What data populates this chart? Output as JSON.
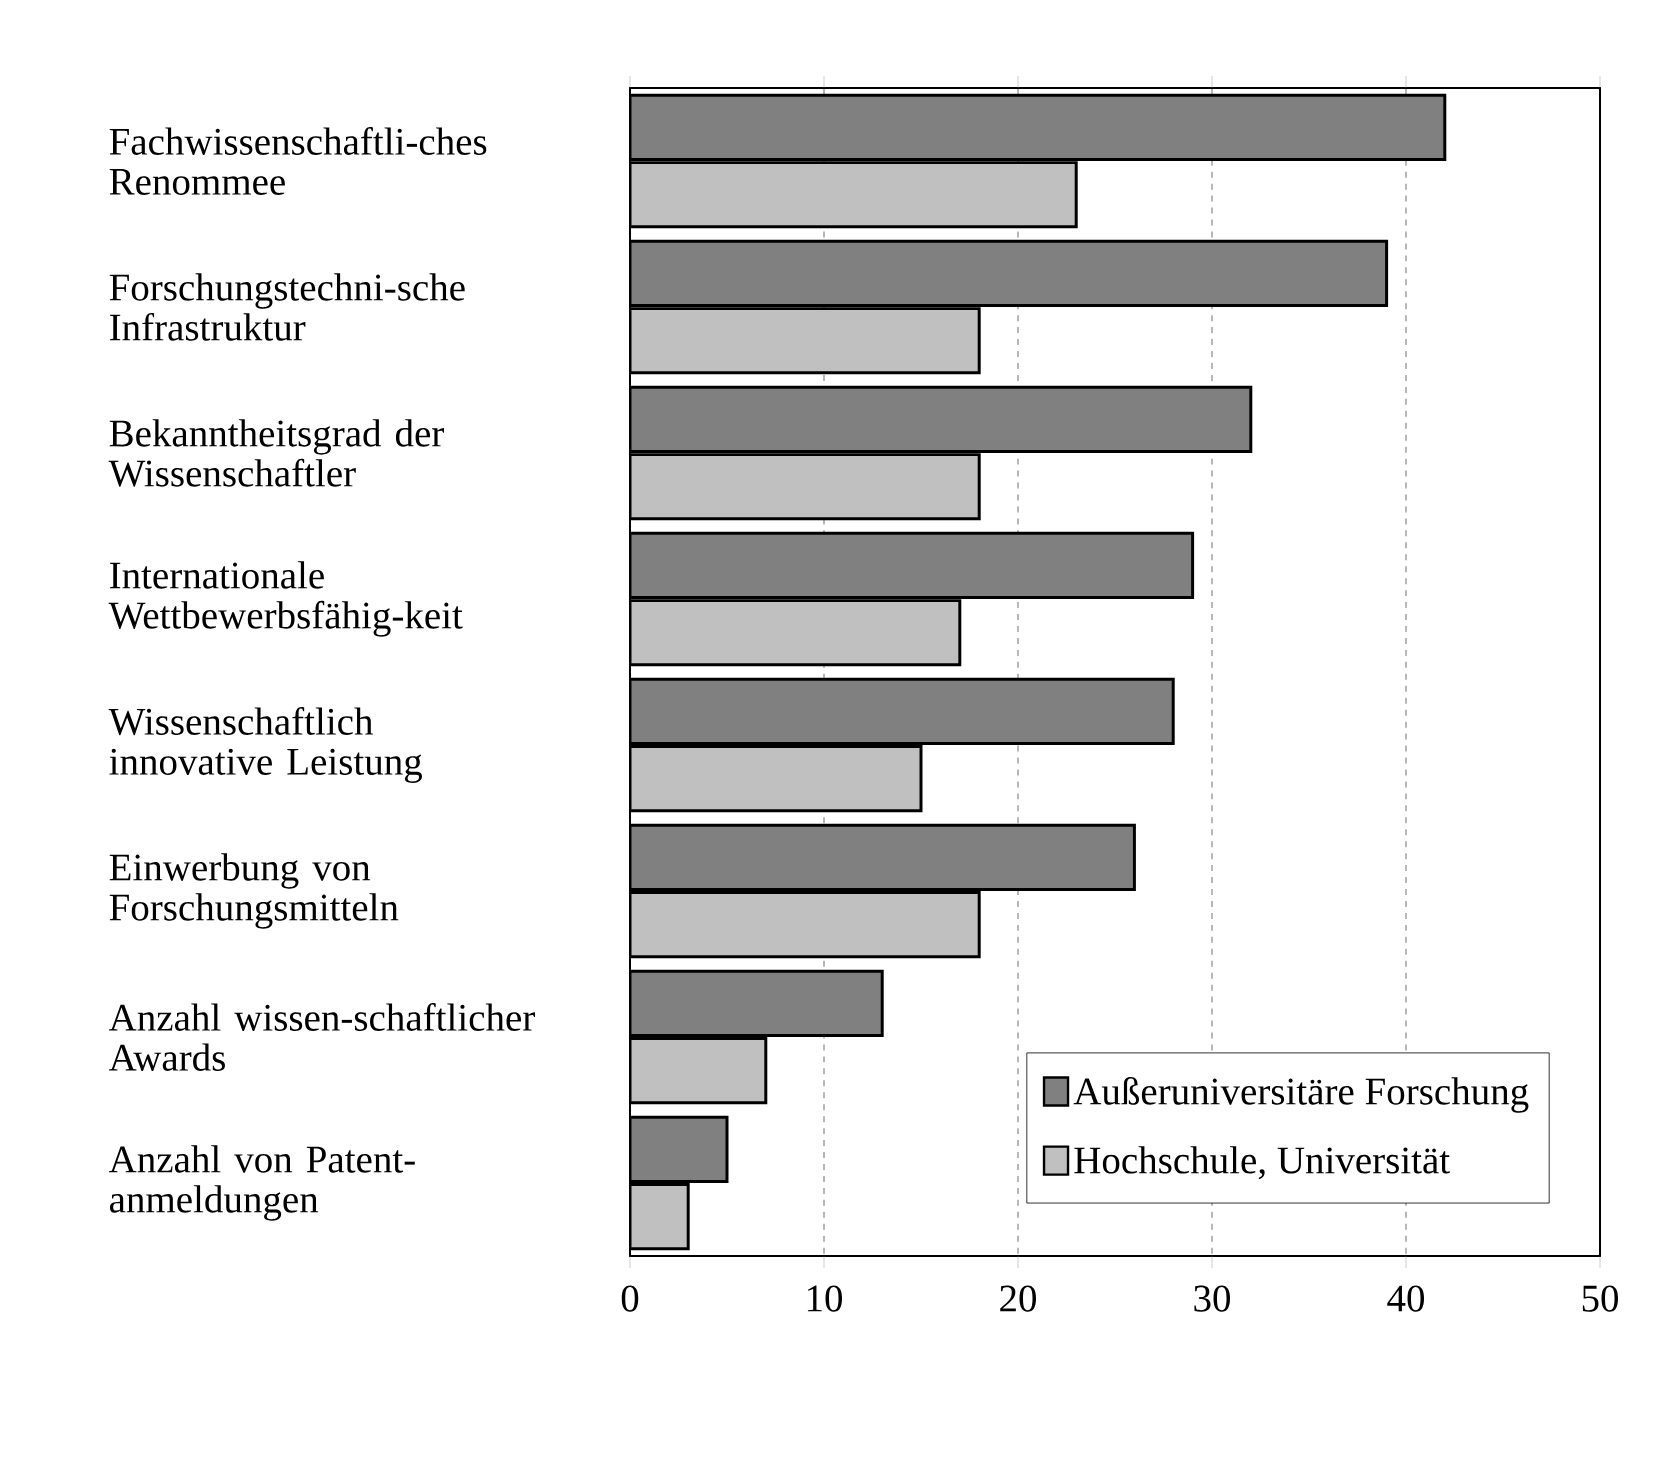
{
  "chart_data": {
    "type": "bar",
    "orientation": "horizontal",
    "categories": [
      "Fachwissenschaftli-ches Renommee",
      "Forschungstechni-sche Infrastruktur",
      "Bekanntheitsgrad der Wissenschaftler",
      "Internationale Wettbewerbsfähig-keit",
      "Wissenschaftlich innovative Leistung",
      "Einwerbung von Forschungsmitteln",
      "Anzahl wissen-schaftlicher Awards",
      "Anzahl von Patent-anmeldungen"
    ],
    "series": [
      {
        "name": "Außeruniversitäre Forschung",
        "color": "#808080",
        "values": [
          42,
          39,
          32,
          29,
          28,
          26,
          13,
          5
        ]
      },
      {
        "name": "Hochschule, Universität",
        "color": "#c0c0c0",
        "values": [
          23,
          18,
          18,
          17,
          15,
          18,
          7,
          3
        ]
      }
    ],
    "xlim": [
      0,
      50
    ],
    "xticks": [
      0,
      10,
      20,
      30,
      40,
      50
    ],
    "grid": "x",
    "legend": "bottom right"
  }
}
